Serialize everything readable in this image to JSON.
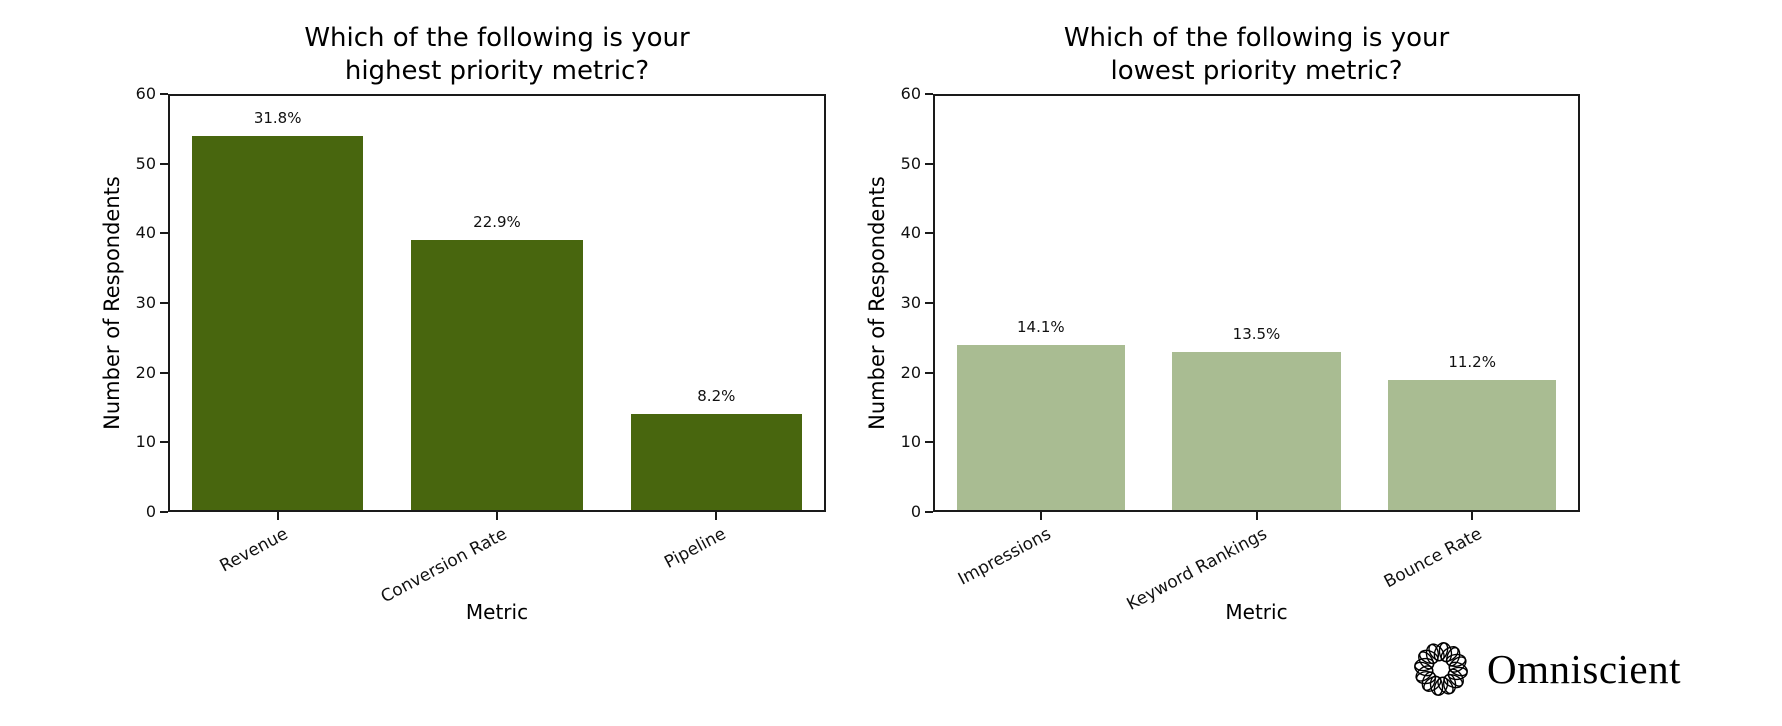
{
  "branding": {
    "logo_text": "Omniscient"
  },
  "chart_data": [
    {
      "type": "bar",
      "title": "Which of the following is your\nhighest priority metric?",
      "xlabel": "Metric",
      "ylabel": "Number of Respondents",
      "categories": [
        "Revenue",
        "Conversion Rate",
        "Pipeline"
      ],
      "values": [
        54,
        39,
        14
      ],
      "bar_labels": [
        "31.8%",
        "22.9%",
        "8.2%"
      ],
      "bar_color": "#48660E",
      "ylim": [
        0,
        60
      ],
      "yticks": [
        0,
        10,
        20,
        30,
        40,
        50,
        60
      ],
      "grid": false,
      "legend": "none"
    },
    {
      "type": "bar",
      "title": "Which of the following is your\nlowest priority metric?",
      "xlabel": "Metric",
      "ylabel": "Number of Respondents",
      "categories": [
        "Impressions",
        "Keyword Rankings",
        "Bounce Rate"
      ],
      "values": [
        24,
        23,
        19
      ],
      "bar_labels": [
        "14.1%",
        "13.5%",
        "11.2%"
      ],
      "bar_color": "#A9BC92",
      "ylim": [
        0,
        60
      ],
      "yticks": [
        0,
        10,
        20,
        30,
        40,
        50,
        60
      ],
      "grid": false,
      "legend": "none"
    }
  ]
}
